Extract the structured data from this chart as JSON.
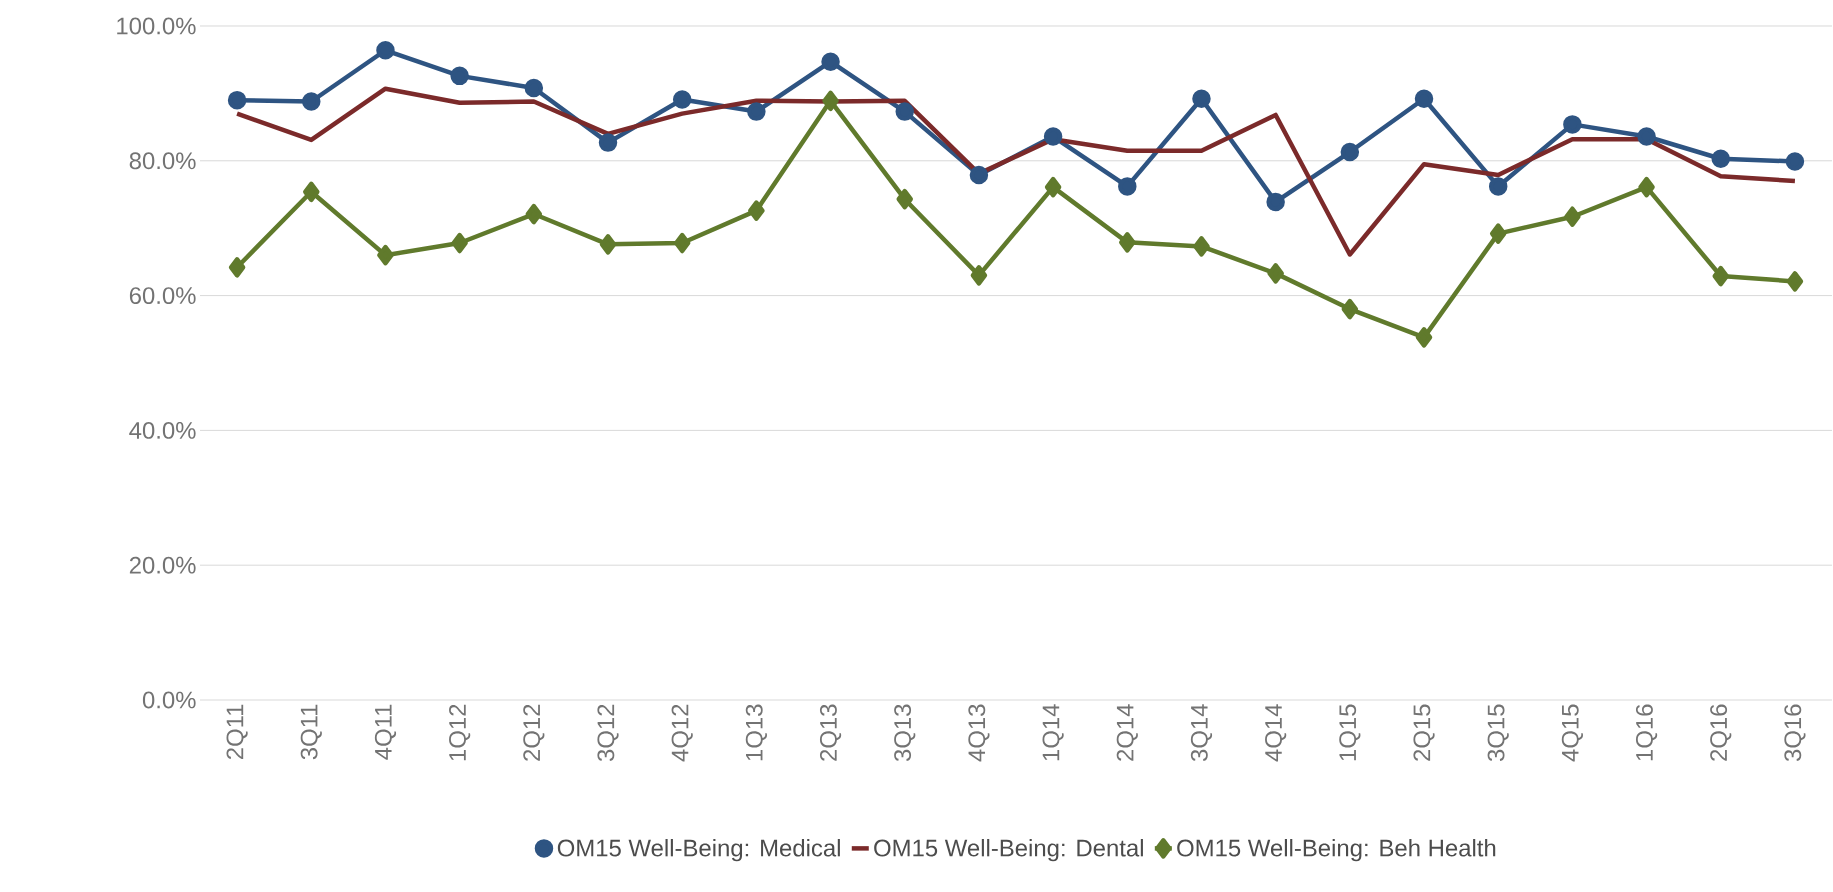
{
  "chart_data": {
    "type": "line",
    "categories": [
      "2Q11",
      "3Q11",
      "4Q11",
      "1Q12",
      "2Q12",
      "3Q12",
      "4Q12",
      "1Q13",
      "2Q13",
      "3Q13",
      "4Q13",
      "1Q14",
      "2Q14",
      "3Q14",
      "4Q14",
      "1Q15",
      "2Q15",
      "3Q15",
      "4Q15",
      "1Q16",
      "2Q16",
      "3Q16"
    ],
    "series": [
      {
        "name": "OM15 Well-Being: Medical",
        "color": "#2e5482",
        "marker": "circle",
        "values": [
          89.0,
          88.8,
          96.4,
          92.6,
          90.8,
          82.7,
          89.1,
          87.3,
          94.7,
          87.3,
          77.9,
          83.6,
          76.2,
          89.2,
          73.9,
          81.3,
          89.2,
          76.2,
          85.4,
          83.6,
          80.3,
          79.9
        ]
      },
      {
        "name": "OM15 Well-Being: Dental",
        "color": "#7b2a2a",
        "marker": "none",
        "values": [
          87.0,
          83.1,
          90.7,
          88.6,
          88.8,
          84.0,
          87.0,
          88.9,
          88.8,
          88.9,
          78.1,
          83.2,
          81.5,
          81.5,
          86.8,
          66.1,
          79.5,
          77.9,
          83.2,
          83.2,
          77.7,
          77.0
        ]
      },
      {
        "name": "OM15 Well-Being: Beh Health",
        "color": "#607a2c",
        "marker": "diamond",
        "values": [
          64.2,
          75.4,
          66.0,
          67.8,
          72.1,
          67.6,
          67.8,
          72.6,
          88.9,
          74.3,
          63.0,
          76.1,
          67.9,
          67.3,
          63.3,
          58.0,
          53.8,
          69.2,
          71.7,
          76.1,
          62.9,
          62.1
        ]
      }
    ],
    "ylim": [
      0,
      100
    ],
    "yticks": [
      {
        "value": 0,
        "label": "0.0%"
      },
      {
        "value": 20,
        "label": "20.0%"
      },
      {
        "value": 40,
        "label": "40.0%"
      },
      {
        "value": 60,
        "label": "60.0%"
      },
      {
        "value": 80,
        "label": "80.0%"
      },
      {
        "value": 100,
        "label": "100.0%"
      }
    ],
    "grid": "y",
    "legend": "bottom"
  }
}
